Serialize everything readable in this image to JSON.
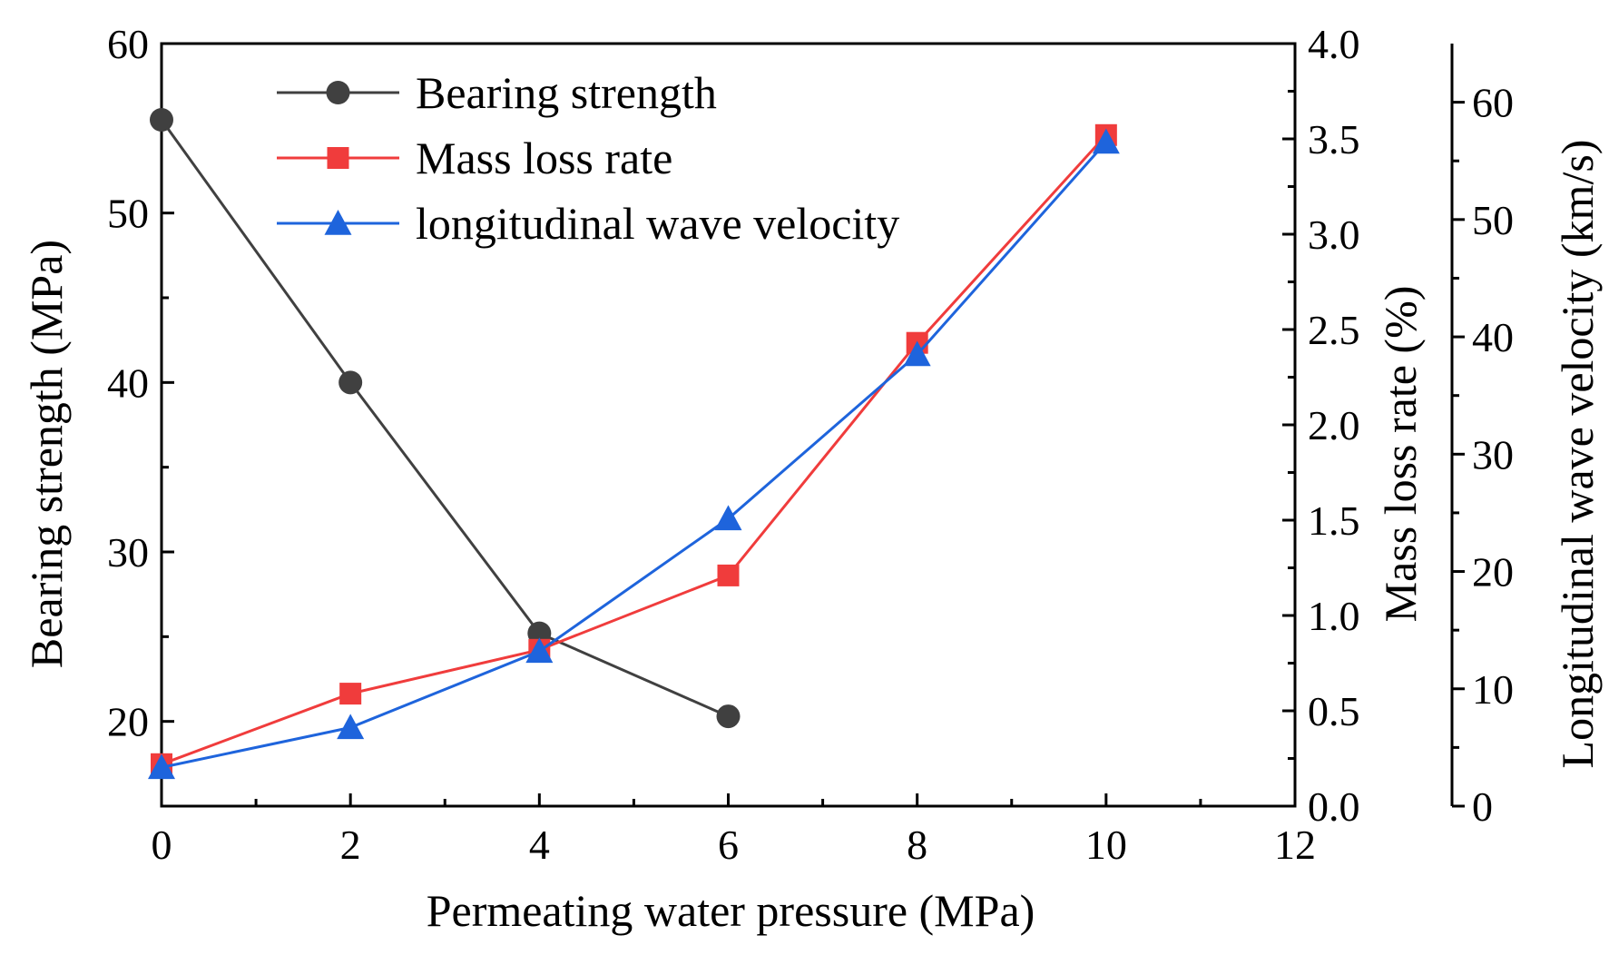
{
  "chart_data": {
    "type": "line",
    "xlabel": "Permeating water pressure (MPa)",
    "xlim": [
      0,
      12
    ],
    "xticks": [
      0,
      2,
      4,
      6,
      8,
      10,
      12
    ],
    "axes": {
      "left": {
        "label": "Bearing strength (MPa)",
        "lim": [
          15,
          60
        ],
        "ticks": [
          20,
          30,
          40,
          50,
          60
        ]
      },
      "right1": {
        "label": "Mass loss rate (%)",
        "lim": [
          0,
          4
        ],
        "ticks": [
          0.0,
          0.5,
          1.0,
          1.5,
          2.0,
          2.5,
          3.0,
          3.5,
          4.0
        ],
        "tick_labels": [
          "0.0",
          "0.5",
          "1.0",
          "1.5",
          "2.0",
          "2.5",
          "3.0",
          "3.5",
          "4.0"
        ]
      },
      "right2": {
        "label": "Longitudinal wave velocity (km/s)",
        "lim": [
          0,
          65
        ],
        "ticks": [
          0,
          10,
          20,
          30,
          40,
          50,
          60
        ]
      }
    },
    "series": [
      {
        "name": "Bearing strength",
        "axis": "left",
        "color": "#404040",
        "marker": "circle",
        "x": [
          0,
          2,
          4,
          6
        ],
        "values": [
          55.5,
          40.0,
          25.2,
          20.3
        ]
      },
      {
        "name": "Mass loss rate",
        "axis": "right1",
        "color": "#f03c3c",
        "marker": "square",
        "x": [
          0,
          2,
          4,
          6,
          8,
          10
        ],
        "values": [
          0.22,
          0.59,
          0.82,
          1.21,
          2.43,
          3.52
        ]
      },
      {
        "name": "longitudinal wave velocity",
        "axis": "right2",
        "color": "#1e64dc",
        "marker": "triangle",
        "x": [
          0,
          2,
          4,
          6,
          8,
          10
        ],
        "values": [
          3.3,
          6.7,
          13.2,
          24.5,
          38.5,
          56.6
        ]
      }
    ],
    "legend_position": "top-left"
  }
}
